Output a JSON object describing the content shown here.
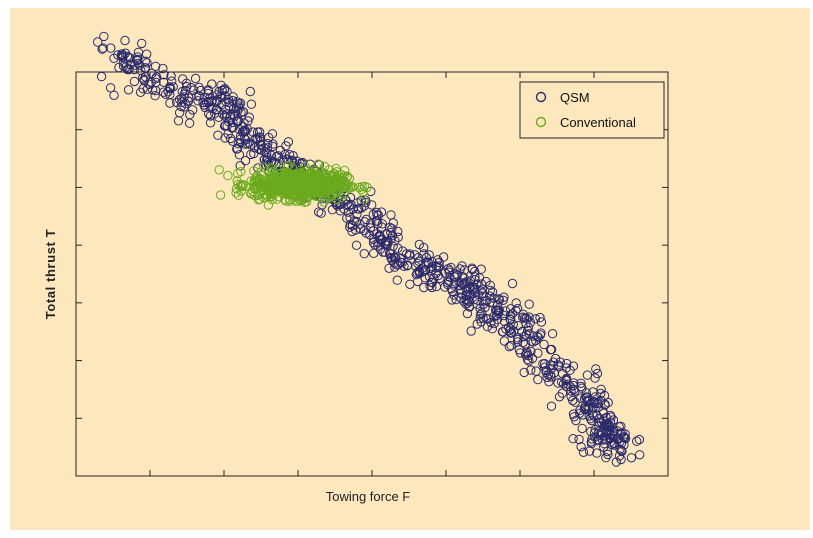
{
  "colors": {
    "frame_background": "#fde8be",
    "plot_background": "#fde8be",
    "axis": "#222222",
    "qsm": "#2b2a6b",
    "conventional": "#6aaa1e"
  },
  "chart_data": {
    "type": "scatter",
    "title": "",
    "xlabel": "Towing force F",
    "ylabel": "Total thrust T",
    "tick_labels": "none",
    "xlim": [
      0,
      8
    ],
    "ylim": [
      0,
      7
    ],
    "xticks": [
      1,
      2,
      3,
      4,
      5,
      6,
      7
    ],
    "yticks": [
      1,
      2,
      3,
      4,
      5,
      6
    ],
    "grid": false,
    "legend_position": "top-right",
    "marker": "open-circle",
    "series": [
      {
        "name": "QSM",
        "color": "#2b2a6b",
        "trend": [
          [
            0.5,
            7.35
          ],
          [
            1.0,
            6.9
          ],
          [
            1.6,
            6.5
          ],
          [
            2.0,
            6.6
          ],
          [
            2.2,
            5.9
          ],
          [
            2.6,
            5.5
          ],
          [
            3.0,
            5.25
          ],
          [
            3.5,
            4.8
          ],
          [
            4.0,
            4.3
          ],
          [
            4.4,
            3.8
          ],
          [
            4.9,
            3.5
          ],
          [
            5.3,
            3.3
          ],
          [
            5.6,
            2.9
          ],
          [
            6.0,
            2.65
          ],
          [
            6.3,
            2.0
          ],
          [
            6.9,
            1.3
          ],
          [
            7.1,
            0.75
          ],
          [
            7.4,
            0.55
          ]
        ],
        "n_points": 900
      },
      {
        "name": "Conventional",
        "color": "#6aaa1e",
        "center": [
          3.0,
          5.05
        ],
        "spread": [
          0.7,
          0.22
        ],
        "n_points": 700
      }
    ]
  }
}
